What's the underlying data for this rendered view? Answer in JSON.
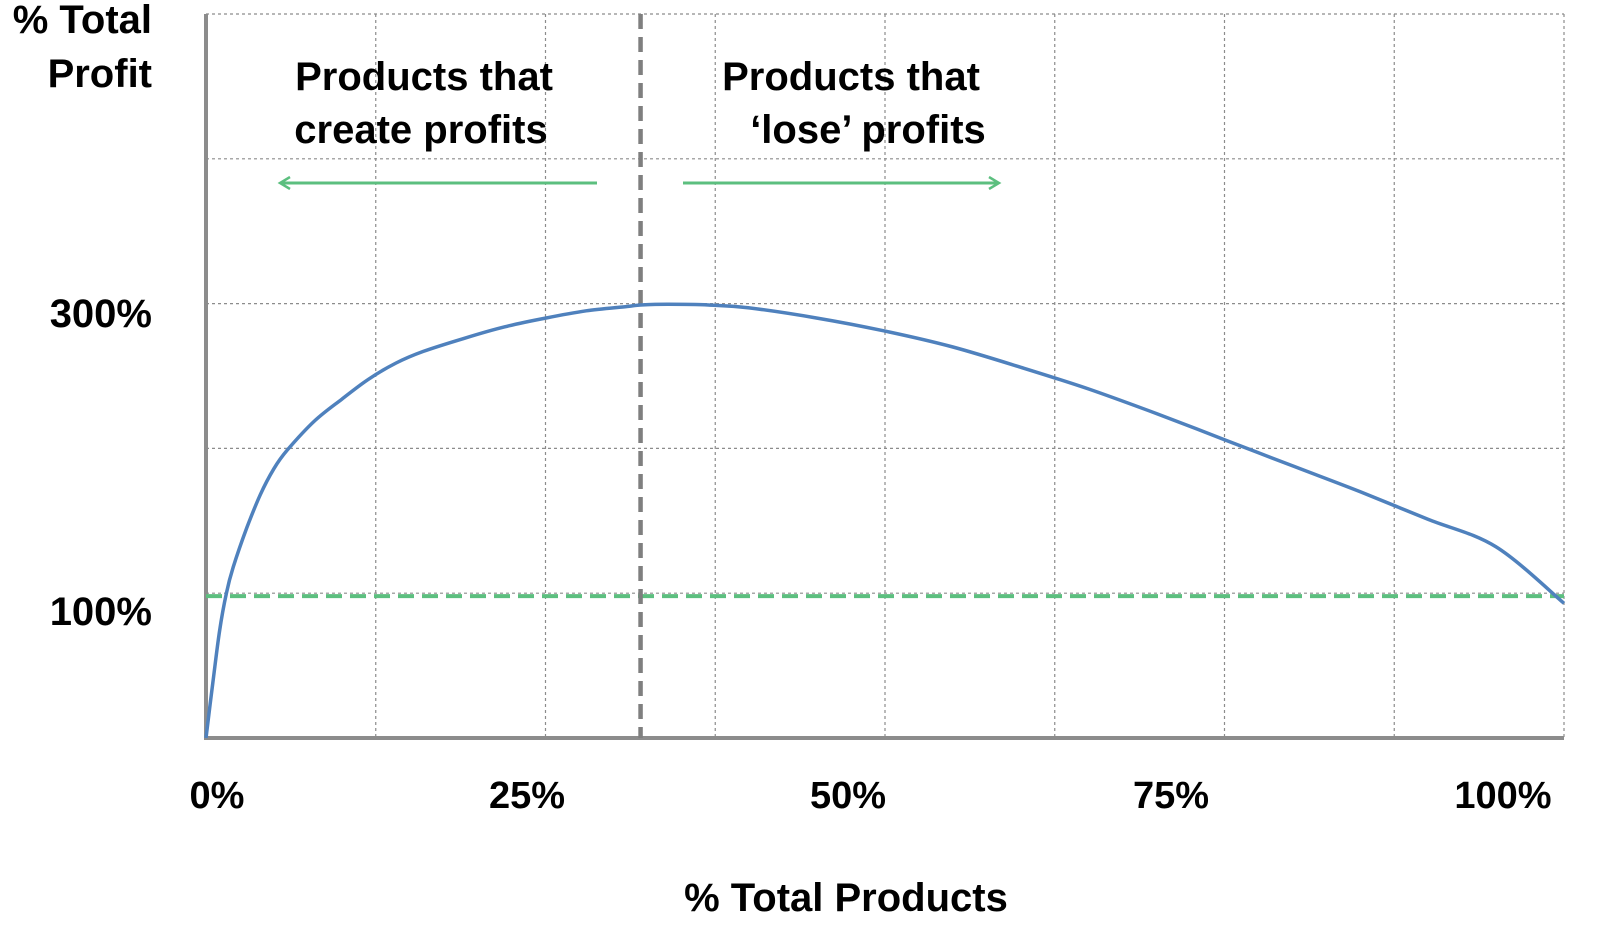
{
  "chart_data": {
    "type": "line",
    "ylabel_lines": [
      "% Total",
      "Profit"
    ],
    "xlabel": "% Total Products",
    "x_tick_labels": [
      "0%",
      "25%",
      "50%",
      "75%",
      "100%"
    ],
    "x_ticks": [
      0,
      25,
      50,
      75,
      100
    ],
    "y_tick_labels": [
      "300%",
      "100%"
    ],
    "y_ticks": [
      300,
      100
    ],
    "xlim": [
      0,
      100
    ],
    "ylim": [
      0,
      500
    ],
    "grid": true,
    "series": [
      {
        "color": "#4f81bd",
        "x": [
          0,
          0.5,
          1,
          1.5,
          2,
          3,
          4,
          5,
          6,
          8,
          10,
          12,
          14,
          16,
          19,
          22,
          25,
          28,
          31,
          32,
          34,
          37,
          40,
          45,
          50,
          55,
          60,
          65,
          70,
          75,
          80,
          85,
          90,
          95,
          100
        ],
        "y": [
          0,
          38,
          74,
          100,
          118,
          145,
          168,
          186,
          199,
          219,
          234,
          248,
          259,
          267,
          276,
          284,
          290,
          295,
          298,
          299,
          299.5,
          299,
          297,
          290,
          281,
          270,
          256,
          241,
          224,
          206,
          188,
          170,
          151,
          132,
          93
        ]
      }
    ],
    "reference_lines": [
      {
        "orientation": "horizontal",
        "value": 98,
        "style": "dashed",
        "color": "#5cbf7f"
      },
      {
        "orientation": "vertical",
        "value": 32,
        "style": "dashed",
        "color": "#7f7f7f"
      }
    ],
    "annotations": [
      {
        "lines": [
          "Products that",
          "create profits"
        ],
        "arrow": "left",
        "color": "#5cbf7f"
      },
      {
        "lines": [
          "Products that",
          "‘lose’ profits"
        ],
        "arrow": "right",
        "color": "#5cbf7f"
      }
    ]
  }
}
